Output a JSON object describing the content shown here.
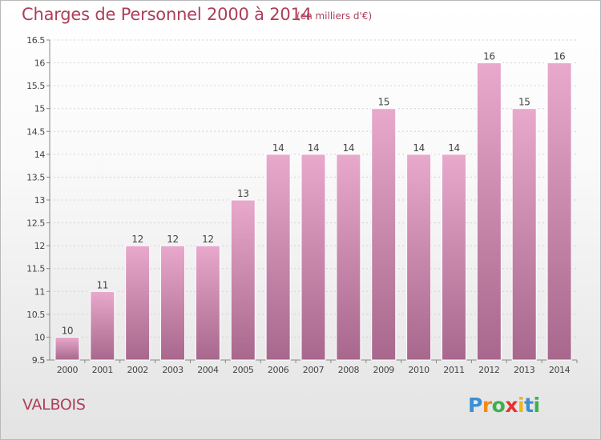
{
  "header": {
    "title": "Charges de Personnel 2000 à 2014",
    "subtitle": "(en milliers d'€)"
  },
  "footer": {
    "place": "VALBOIS",
    "logo_text": "Proxiti"
  },
  "colors": {
    "bar_top": "#e8a9cc",
    "bar_bottom": "#a8678c",
    "title": "#ad3e5a",
    "axis_text": "#444444",
    "gridline": "#d2d2d2"
  },
  "chart_data": {
    "type": "bar",
    "categories": [
      "2000",
      "2001",
      "2002",
      "2003",
      "2004",
      "2005",
      "2006",
      "2007",
      "2008",
      "2009",
      "2010",
      "2011",
      "2012",
      "2013",
      "2014"
    ],
    "values": [
      10,
      11,
      12,
      12,
      12,
      13,
      14,
      14,
      14,
      15,
      14,
      14,
      16,
      15,
      16
    ],
    "data_labels": [
      "10",
      "11",
      "12",
      "12",
      "12",
      "13",
      "14",
      "14",
      "14",
      "15",
      "14",
      "14",
      "16",
      "15",
      "16"
    ],
    "title": "Charges de Personnel 2000 à 2014",
    "subtitle": "(en milliers d'€)",
    "xlabel": "",
    "ylabel": "",
    "ylim": [
      9.5,
      16.5
    ],
    "yticks": [
      9.5,
      10,
      10.5,
      11,
      11.5,
      12,
      12.5,
      13,
      13.5,
      14,
      14.5,
      15,
      15.5,
      16,
      16.5
    ],
    "ytick_labels": [
      "9.5",
      "10",
      "10.5",
      "11",
      "11.5",
      "12",
      "12.5",
      "13",
      "13.5",
      "14",
      "14.5",
      "15",
      "15.5",
      "16",
      "16.5"
    ],
    "grid": true,
    "legend": "none"
  }
}
